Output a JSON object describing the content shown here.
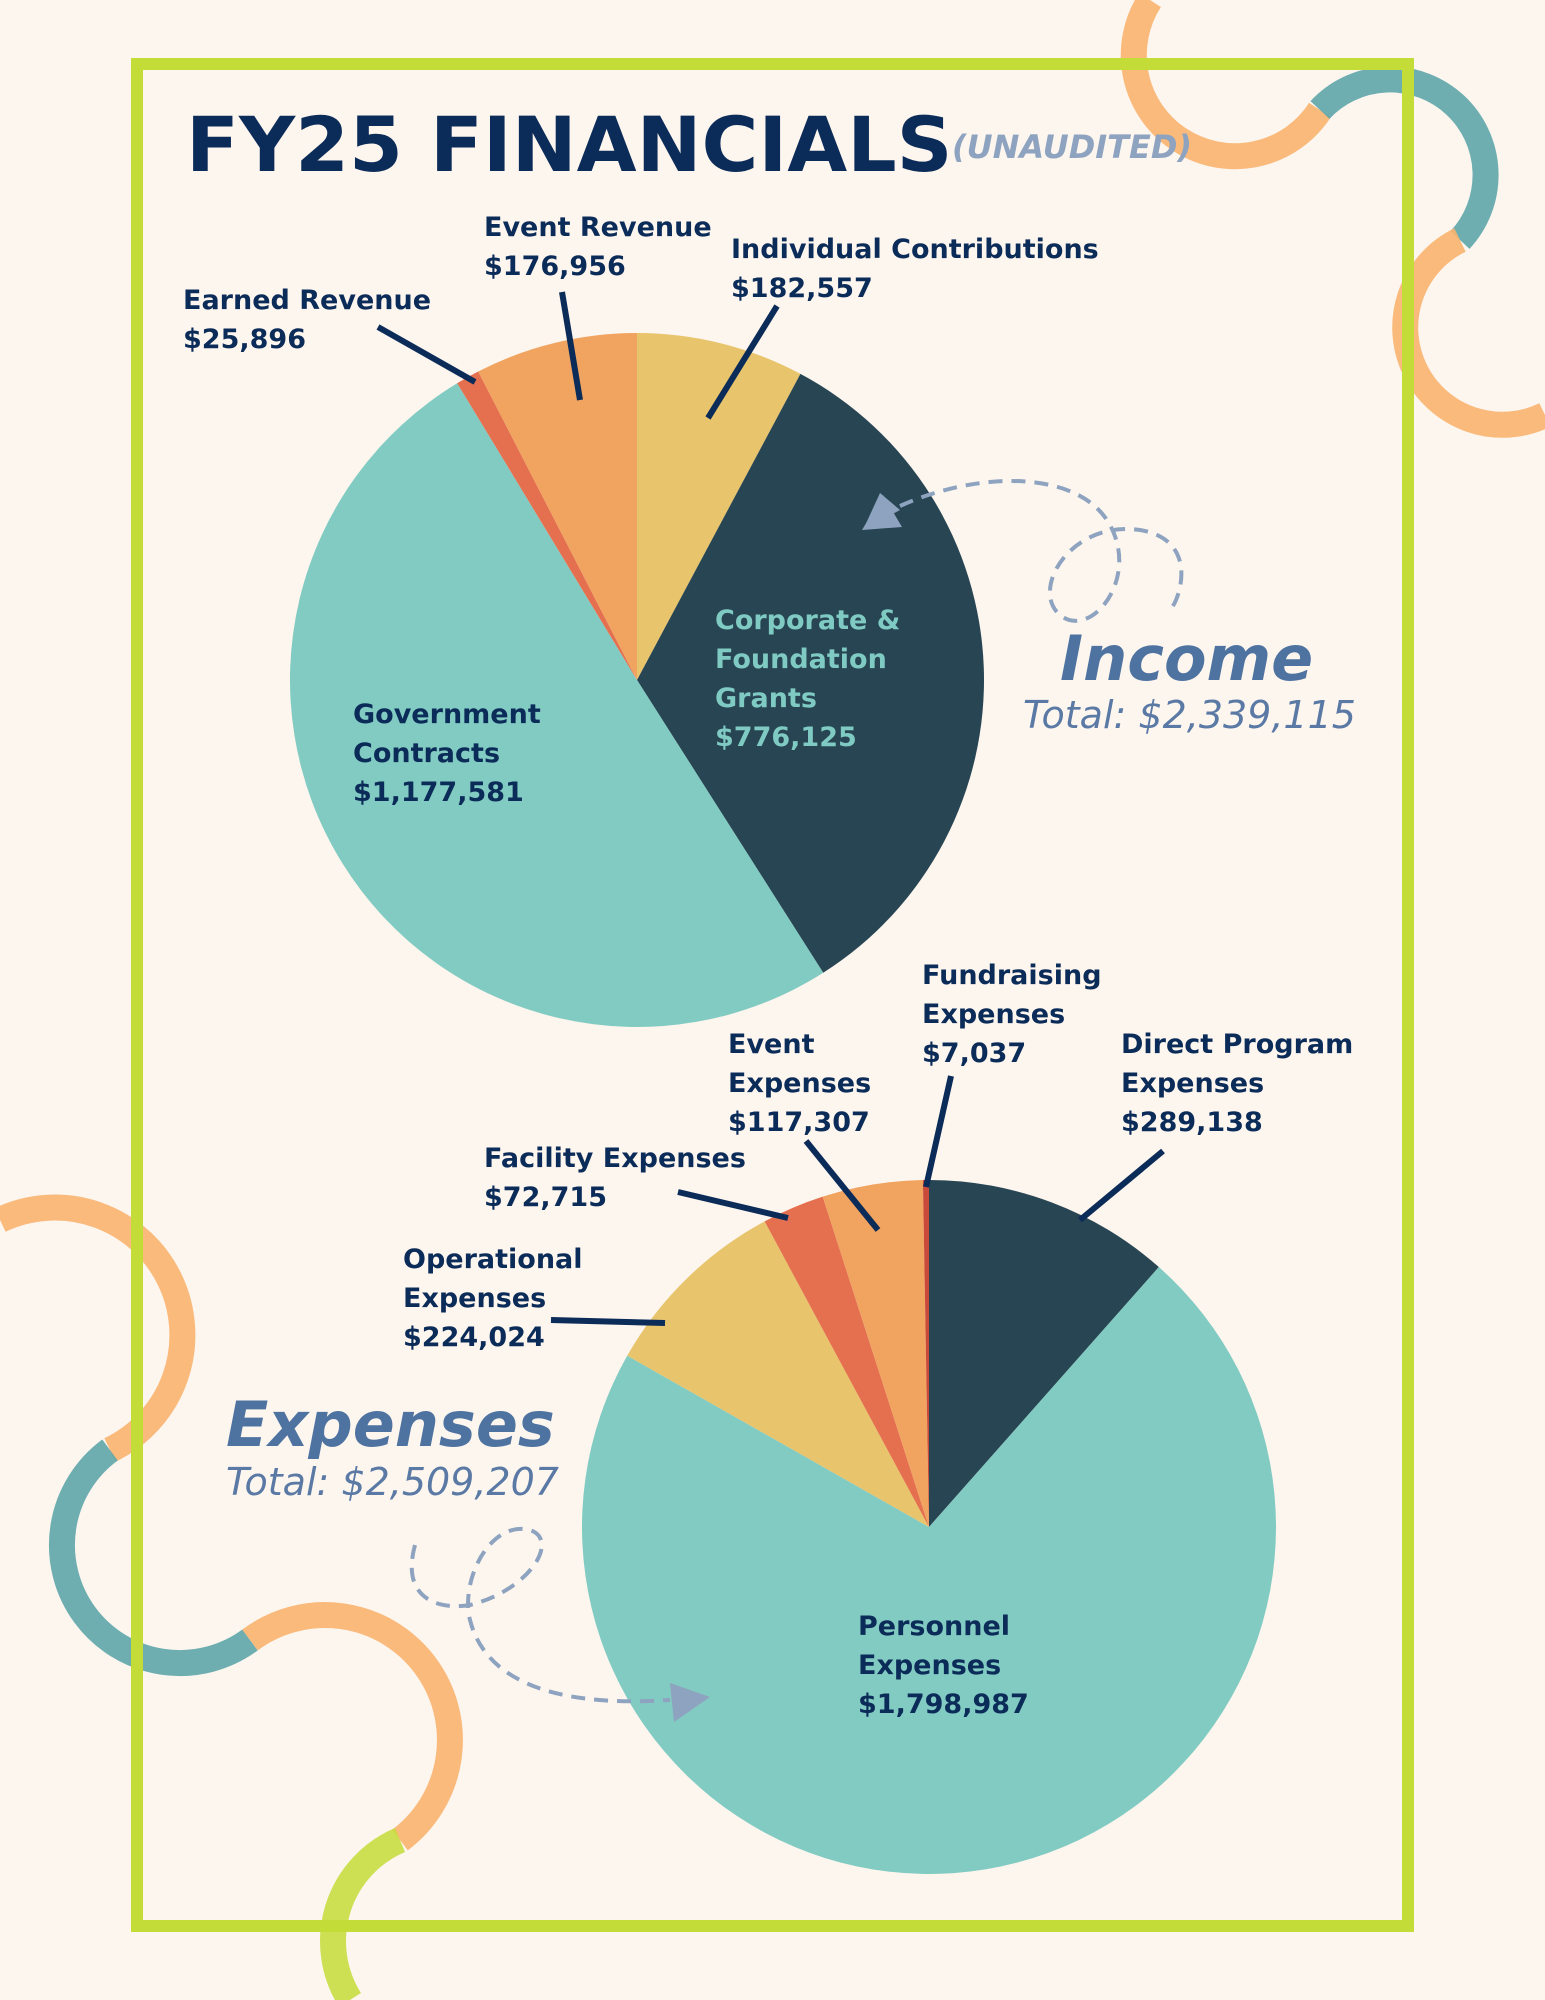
{
  "header": {
    "title": "FY25 FINANCIALS",
    "subtitle": "(UNAUDITED)"
  },
  "colors": {
    "background": "#fdf6ef",
    "frame": "#c4dc38",
    "navy": "#0b2b58",
    "teal": "#82cbc2",
    "dark_slate": "#284553",
    "yellow": "#e8c46c",
    "orange": "#f0a460",
    "red": "#e5704f",
    "accent_blue": "#4f73a0"
  },
  "chart_data": [
    {
      "type": "pie",
      "title": "Income",
      "total_label": "Total: $2,339,115",
      "slices": [
        {
          "name": "Individual Contributions",
          "value": 182557,
          "value_label": "$182,557",
          "color": "#e8c46c"
        },
        {
          "name": "Corporate & Foundation Grants",
          "value": 776125,
          "value_label": "$776,125",
          "color": "#284553"
        },
        {
          "name": "Government Contracts",
          "value": 1177581,
          "value_label": "$1,177,581",
          "color": "#82cbc2"
        },
        {
          "name": "Earned Revenue",
          "value": 25896,
          "value_label": "$25,896",
          "color": "#e5704f"
        },
        {
          "name": "Event Revenue",
          "value": 176956,
          "value_label": "$176,956",
          "color": "#f0a460"
        }
      ]
    },
    {
      "type": "pie",
      "title": "Expenses",
      "total_label": "Total: $2,509,207",
      "slices": [
        {
          "name": "Direct Program Expenses",
          "value": 289138,
          "value_label": "$289,138",
          "color": "#284553"
        },
        {
          "name": "Personnel Expenses",
          "value": 1798987,
          "value_label": "$1,798,987",
          "color": "#82cbc2"
        },
        {
          "name": "Operational Expenses",
          "value": 224024,
          "value_label": "$224,024",
          "color": "#e8c46c"
        },
        {
          "name": "Facility Expenses",
          "value": 72715,
          "value_label": "$72,715",
          "color": "#e5704f"
        },
        {
          "name": "Event Expenses",
          "value": 117307,
          "value_label": "$117,307",
          "color": "#f0a460"
        },
        {
          "name": "Fundraising Expenses",
          "value": 7037,
          "value_label": "$7,037",
          "color": "#c94a3a"
        }
      ]
    }
  ],
  "labels": {
    "income": {
      "event_revenue": [
        "Event Revenue",
        "$176,956"
      ],
      "individual": [
        "Individual Contributions",
        "$182,557"
      ],
      "earned": [
        "Earned Revenue",
        "$25,896"
      ],
      "corporate": [
        "Corporate &",
        "Foundation",
        "Grants",
        "$776,125"
      ],
      "government": [
        "Government",
        "Contracts",
        "$1,177,581"
      ]
    },
    "expenses": {
      "fundraising": [
        "Fundraising",
        "Expenses",
        "$7,037"
      ],
      "event": [
        "Event",
        "Expenses",
        "$117,307"
      ],
      "direct": [
        "Direct Program",
        "Expenses",
        "$289,138"
      ],
      "facility": [
        "Facility Expenses",
        "$72,715"
      ],
      "operational": [
        "Operational",
        "Expenses",
        "$224,024"
      ],
      "personnel": [
        "Personnel",
        "Expenses",
        "$1,798,987"
      ]
    }
  }
}
